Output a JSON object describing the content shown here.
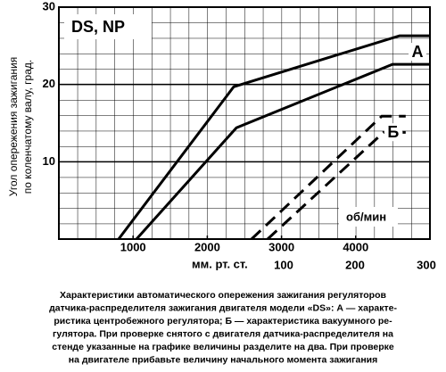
{
  "chart_data": {
    "type": "line",
    "title": "DS, NP",
    "y_label": [
      "Угол опережения зажигания",
      "по коленчатому валу, град."
    ],
    "x_label": "об/мин",
    "x2_label": "мм. рт. ст.",
    "xlim": [
      0,
      5000
    ],
    "xticks": [
      1000,
      2000,
      3000,
      4000
    ],
    "x2lim": [
      -215,
      305
    ],
    "x2ticks": [
      100,
      200,
      300
    ],
    "ylim": [
      0,
      30
    ],
    "yticks": [
      10,
      20,
      30
    ],
    "grid": true,
    "series": [
      {
        "name": "А",
        "color": "#000000",
        "dash": false,
        "x": [
          805,
          2356,
          4591,
          5000
        ],
        "values": [
          0,
          19.7,
          26.3,
          26.3
        ]
      },
      {
        "color": "#000000",
        "dash": false,
        "x": [
          1046,
          2392,
          4495,
          5000
        ],
        "values": [
          0,
          14.4,
          22.6,
          22.6
        ]
      },
      {
        "name": "Б",
        "color": "#000000",
        "dash": true,
        "axis": "x2",
        "x": [
          55,
          237.5,
          271
        ],
        "values": [
          0,
          15.9,
          15.9
        ]
      },
      {
        "color": "#000000",
        "dash": true,
        "axis": "x2",
        "x": [
          77.5,
          240,
          271
        ],
        "values": [
          0,
          13.8,
          13.8
        ]
      }
    ],
    "caption": [
      "Характеристики автоматического опережения зажигания регуляторов",
      "датчика-распределителя зажигания двигателя модели «DS»: А — характе-",
      "ристика центробежного регулятора; Б — характеристика вакуумного ре-",
      "гулятора. При проверке снятого с двигателя датчика-распределителя на",
      "стенде указанные на графике величины разделите на два. При проверке",
      "на двигателе прибавьте величину начального момента зажигания"
    ]
  }
}
